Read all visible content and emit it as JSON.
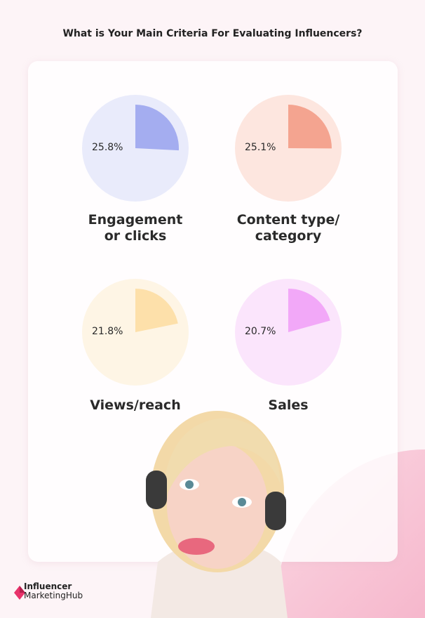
{
  "header": {
    "title": "What is Your Main Criteria For Evaluating Influencers?"
  },
  "chart_data": {
    "type": "pie",
    "title": "What is Your Main Criteria For Evaluating Influencers?",
    "charts": [
      {
        "category": "Engagement\nor clicks",
        "value": 25.8,
        "label": "25.8%",
        "color": "#a4adf0",
        "bg": "#e9ebfb"
      },
      {
        "category": "Content type/\ncategory",
        "value": 25.1,
        "label": "25.1%",
        "color": "#f4a490",
        "bg": "#fde6df"
      },
      {
        "category": "Views/reach",
        "value": 21.8,
        "label": "21.8%",
        "color": "#fde0aa",
        "bg": "#fef5e5"
      },
      {
        "category": "Sales",
        "value": 20.7,
        "label": "20.7%",
        "color": "#f2a8f8",
        "bg": "#fbe5fc"
      }
    ]
  },
  "logo": {
    "line1": "Influencer",
    "line2a": "Marketing",
    "line2b": "Hub",
    "color": "#e8336b"
  }
}
